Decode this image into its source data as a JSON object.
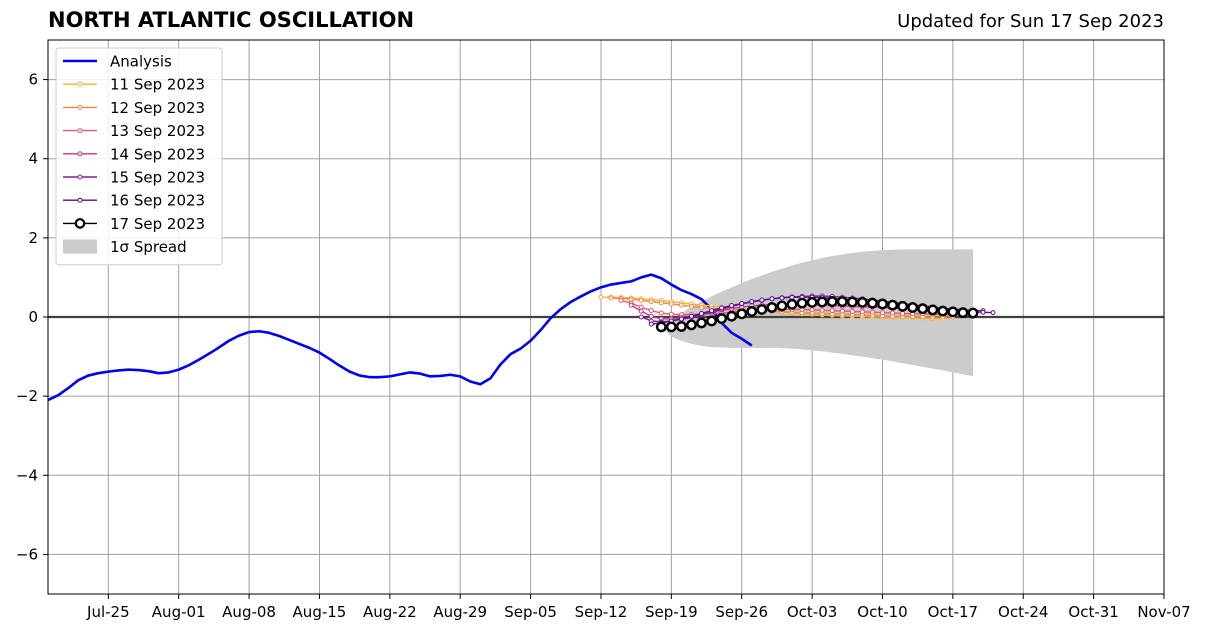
{
  "header": {
    "title": "NORTH ATLANTIC OSCILLATION",
    "updated": "Updated for Sun 17 Sep 2023"
  },
  "colors": {
    "analysis": "#0000ee",
    "spread": "#cccccc",
    "grid": "#a0a0a0",
    "zero_line": "#404040"
  },
  "legend": {
    "placement": "top-left",
    "items": [
      {
        "label": "Analysis",
        "kind": "analysis",
        "color": "#0000ee"
      },
      {
        "label": "11 Sep 2023",
        "kind": "forecast",
        "color": "#f6b23a"
      },
      {
        "label": "12 Sep 2023",
        "kind": "forecast",
        "color": "#ef8a3c"
      },
      {
        "label": "13 Sep 2023",
        "kind": "forecast",
        "color": "#de5a6c"
      },
      {
        "label": "14 Sep 2023",
        "kind": "forecast",
        "color": "#c2378a"
      },
      {
        "label": "15 Sep 2023",
        "kind": "forecast",
        "color": "#8d1a9c"
      },
      {
        "label": "16 Sep 2023",
        "kind": "forecast",
        "color": "#55108e"
      },
      {
        "label": "17 Sep 2023",
        "kind": "latest",
        "color": "#000000"
      },
      {
        "label": "1σ Spread",
        "kind": "spread",
        "color": "#cccccc"
      }
    ]
  },
  "chart_data": {
    "type": "line",
    "title": "NORTH ATLANTIC OSCILLATION",
    "xlabel": "",
    "ylabel": "",
    "grid": true,
    "xlim": [
      "2023-07-19",
      "2023-11-07"
    ],
    "ylim": [
      -7,
      7
    ],
    "x_ticks": [
      {
        "date": "2023-07-25",
        "label": "Jul-25"
      },
      {
        "date": "2023-08-01",
        "label": "Aug-01"
      },
      {
        "date": "2023-08-08",
        "label": "Aug-08"
      },
      {
        "date": "2023-08-15",
        "label": "Aug-15"
      },
      {
        "date": "2023-08-22",
        "label": "Aug-22"
      },
      {
        "date": "2023-08-29",
        "label": "Aug-29"
      },
      {
        "date": "2023-09-05",
        "label": "Sep-05"
      },
      {
        "date": "2023-09-12",
        "label": "Sep-12"
      },
      {
        "date": "2023-09-19",
        "label": "Sep-19"
      },
      {
        "date": "2023-09-26",
        "label": "Sep-26"
      },
      {
        "date": "2023-10-03",
        "label": "Oct-03"
      },
      {
        "date": "2023-10-10",
        "label": "Oct-10"
      },
      {
        "date": "2023-10-17",
        "label": "Oct-17"
      },
      {
        "date": "2023-10-24",
        "label": "Oct-24"
      },
      {
        "date": "2023-10-31",
        "label": "Oct-31"
      },
      {
        "date": "2023-11-07",
        "label": "Nov-07"
      }
    ],
    "y_ticks": [
      {
        "value": -6,
        "label": "−6"
      },
      {
        "value": -4,
        "label": "−4"
      },
      {
        "value": -2,
        "label": "−2"
      },
      {
        "value": 0,
        "label": "0"
      },
      {
        "value": 2,
        "label": "2"
      },
      {
        "value": 4,
        "label": "4"
      },
      {
        "value": 6,
        "label": "6"
      }
    ],
    "analysis": {
      "name": "Analysis",
      "start": "2023-07-19",
      "values": [
        -2.1,
        -1.98,
        -1.8,
        -1.6,
        -1.48,
        -1.42,
        -1.38,
        -1.35,
        -1.33,
        -1.34,
        -1.37,
        -1.42,
        -1.4,
        -1.33,
        -1.22,
        -1.08,
        -0.93,
        -0.77,
        -0.6,
        -0.47,
        -0.38,
        -0.36,
        -0.4,
        -0.48,
        -0.58,
        -0.68,
        -0.78,
        -0.9,
        -1.06,
        -1.23,
        -1.38,
        -1.48,
        -1.52,
        -1.52,
        -1.5,
        -1.45,
        -1.4,
        -1.43,
        -1.5,
        -1.49,
        -1.46,
        -1.5,
        -1.63,
        -1.7,
        -1.55,
        -1.2,
        -0.94,
        -0.8,
        -0.6,
        -0.33,
        -0.03,
        0.2,
        0.38,
        0.52,
        0.65,
        0.75,
        0.82,
        0.86,
        0.9,
        1.0,
        1.07,
        0.98,
        0.82,
        0.68,
        0.58,
        0.45,
        0.2,
        -0.15,
        -0.4,
        -0.55,
        -0.72
      ]
    },
    "forecasts": [
      {
        "name": "11 Sep 2023",
        "start": "2023-09-12",
        "values": [
          0.5,
          0.5,
          0.49,
          0.48,
          0.46,
          0.44,
          0.42,
          0.39,
          0.36,
          0.33,
          0.3,
          0.28,
          0.25,
          0.22,
          0.2,
          0.18,
          0.16,
          0.14,
          0.12,
          0.1,
          0.08,
          0.07,
          0.05,
          0.04,
          0.03,
          0.02,
          0.01,
          0.0,
          0.0,
          -0.01,
          -0.01,
          -0.02,
          -0.03,
          -0.04,
          -0.05
        ]
      },
      {
        "name": "12 Sep 2023",
        "start": "2023-09-13",
        "values": [
          0.48,
          0.47,
          0.45,
          0.42,
          0.39,
          0.36,
          0.33,
          0.3,
          0.27,
          0.24,
          0.22,
          0.2,
          0.18,
          0.17,
          0.16,
          0.15,
          0.14,
          0.13,
          0.12,
          0.11,
          0.1,
          0.09,
          0.08,
          0.07,
          0.06,
          0.05,
          0.04,
          0.03,
          0.02,
          0.02,
          0.01,
          0.01,
          0.0,
          0.0,
          0.0
        ]
      },
      {
        "name": "13 Sep 2023",
        "start": "2023-09-14",
        "values": [
          0.42,
          0.35,
          0.25,
          0.16,
          0.1,
          0.07,
          0.06,
          0.06,
          0.07,
          0.08,
          0.1,
          0.12,
          0.14,
          0.16,
          0.17,
          0.18,
          0.19,
          0.19,
          0.19,
          0.18,
          0.17,
          0.16,
          0.15,
          0.14,
          0.13,
          0.12,
          0.11,
          0.1,
          0.09,
          0.08,
          0.08,
          0.07,
          0.07,
          0.06,
          0.06
        ]
      },
      {
        "name": "14 Sep 2023",
        "start": "2023-09-15",
        "values": [
          0.3,
          0.15,
          0.02,
          -0.05,
          -0.05,
          -0.02,
          0.02,
          0.07,
          0.12,
          0.17,
          0.21,
          0.25,
          0.28,
          0.3,
          0.31,
          0.32,
          0.32,
          0.32,
          0.31,
          0.3,
          0.29,
          0.28,
          0.27,
          0.26,
          0.25,
          0.24,
          0.23,
          0.22,
          0.21,
          0.2,
          0.19,
          0.18,
          0.17,
          0.17,
          0.16
        ]
      },
      {
        "name": "15 Sep 2023",
        "start": "2023-09-16",
        "values": [
          0.0,
          -0.1,
          -0.12,
          -0.1,
          -0.06,
          -0.01,
          0.06,
          0.13,
          0.2,
          0.27,
          0.33,
          0.38,
          0.42,
          0.46,
          0.49,
          0.51,
          0.52,
          0.53,
          0.53,
          0.52,
          0.5,
          0.48,
          0.46,
          0.43,
          0.4,
          0.37,
          0.34,
          0.31,
          0.28,
          0.25,
          0.22,
          0.2,
          0.18,
          0.17,
          0.16
        ]
      },
      {
        "name": "16 Sep 2023",
        "start": "2023-09-17",
        "values": [
          -0.18,
          -0.15,
          -0.1,
          -0.05,
          0.02,
          0.09,
          0.16,
          0.23,
          0.29,
          0.34,
          0.39,
          0.43,
          0.46,
          0.48,
          0.5,
          0.5,
          0.5,
          0.49,
          0.47,
          0.45,
          0.43,
          0.4,
          0.37,
          0.34,
          0.31,
          0.28,
          0.25,
          0.22,
          0.2,
          0.18,
          0.16,
          0.14,
          0.13,
          0.12,
          0.11
        ]
      }
    ],
    "latest": {
      "name": "17 Sep 2023",
      "start": "2023-09-18",
      "values": [
        -0.25,
        -0.25,
        -0.24,
        -0.2,
        -0.15,
        -0.1,
        -0.04,
        0.02,
        0.08,
        0.14,
        0.19,
        0.24,
        0.28,
        0.32,
        0.35,
        0.37,
        0.38,
        0.39,
        0.39,
        0.38,
        0.37,
        0.35,
        0.33,
        0.3,
        0.27,
        0.24,
        0.21,
        0.18,
        0.15,
        0.13,
        0.11,
        0.1
      ]
    },
    "spread": {
      "name": "1σ Spread",
      "start": "2023-09-18",
      "upper": [
        -0.25,
        -0.06,
        0.1,
        0.25,
        0.39,
        0.52,
        0.64,
        0.75,
        0.86,
        0.96,
        1.05,
        1.14,
        1.22,
        1.3,
        1.37,
        1.43,
        1.49,
        1.54,
        1.58,
        1.62,
        1.65,
        1.67,
        1.69,
        1.7,
        1.71,
        1.71,
        1.71,
        1.71,
        1.71,
        1.71,
        1.71,
        1.71
      ],
      "lower": [
        -0.25,
        -0.5,
        -0.6,
        -0.68,
        -0.73,
        -0.76,
        -0.77,
        -0.78,
        -0.78,
        -0.78,
        -0.78,
        -0.78,
        -0.79,
        -0.8,
        -0.82,
        -0.84,
        -0.87,
        -0.9,
        -0.93,
        -0.97,
        -1.0,
        -1.04,
        -1.08,
        -1.12,
        -1.17,
        -1.21,
        -1.26,
        -1.3,
        -1.35,
        -1.4,
        -1.45,
        -1.5
      ]
    }
  }
}
